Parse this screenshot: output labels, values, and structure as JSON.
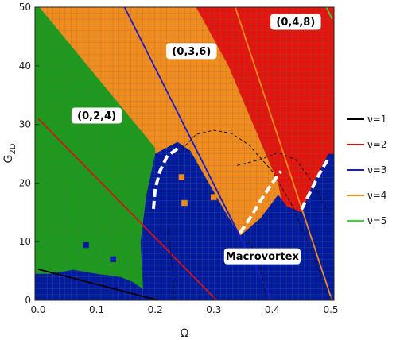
{
  "chart_data": {
    "type": "heatmap",
    "title": "",
    "xlabel": "Ω",
    "ylabel_main": "G",
    "ylabel_sub": "2D",
    "xlim": [
      0,
      0.5
    ],
    "ylim": [
      0,
      50
    ],
    "grid": true,
    "legend_position": "right",
    "x_ticks": [
      "0.0",
      "0.1",
      "0.2",
      "0.3",
      "0.4",
      "0.5"
    ],
    "x_tick_values": [
      0.0,
      0.1,
      0.2,
      0.3,
      0.4,
      0.5
    ],
    "y_ticks": [
      "0",
      "10",
      "20",
      "30",
      "40",
      "50"
    ],
    "y_tick_values": [
      0,
      10,
      20,
      30,
      40,
      50
    ],
    "colors": {
      "green": "#1c9a1c",
      "orange": "#f28c1d",
      "red": "#e3140c",
      "blue": "#001aa0",
      "grid_line": "#7a7a7a"
    },
    "regions": [
      {
        "label": "(0,2,4)",
        "color": "green",
        "x": 0.1,
        "y": 31.5
      },
      {
        "label": "(0,3,6)",
        "color": "orange",
        "x": 0.262,
        "y": 42.5
      },
      {
        "label": "(0,4,8)",
        "color": "red",
        "x": 0.44,
        "y": 47.5
      },
      {
        "label": "Macrovortex",
        "color": "blue",
        "x": 0.383,
        "y": 7.5
      }
    ],
    "boundaries": {
      "green_orange": [
        [
          0.002,
          50
        ],
        [
          0.2,
          26
        ]
      ],
      "orange_red": [
        [
          0.27,
          50
        ],
        [
          0.325,
          40
        ],
        [
          0.41,
          20
        ],
        [
          0.42,
          15
        ]
      ],
      "green_blue": [
        [
          0.2,
          25
        ],
        [
          0.185,
          18
        ],
        [
          0.175,
          10
        ],
        [
          0.18,
          0
        ]
      ],
      "macro_left": [
        [
          0.2,
          25
        ],
        [
          0.238,
          27
        ],
        [
          0.26,
          25.5
        ],
        [
          0.32,
          15
        ],
        [
          0.345,
          11
        ]
      ],
      "macro_right": [
        [
          0.45,
          15
        ],
        [
          0.47,
          20
        ],
        [
          0.496,
          25
        ]
      ]
    },
    "series": [
      {
        "name": "ν=1",
        "color": "#000000",
        "x": [
          0.0,
          0.205
        ],
        "y": [
          5.3,
          0
        ]
      },
      {
        "name": "ν=2",
        "color": "#d31414",
        "x": [
          0.0,
          0.305
        ],
        "y": [
          31,
          0
        ]
      },
      {
        "name": "ν=3",
        "color": "#1a1ad0",
        "x": [
          0.145,
          0.4
        ],
        "y": [
          50.5,
          0
        ]
      },
      {
        "name": "ν=4",
        "color": "#f28a1a",
        "x": [
          0.335,
          0.502
        ],
        "y": [
          50.5,
          0
        ]
      },
      {
        "name": "ν=5",
        "color": "#36d636",
        "x": [
          0.49,
          0.502
        ],
        "y": [
          50.5,
          48
        ]
      }
    ],
    "dashed_white_boundary": [
      [
        [
          0.197,
          15.6
        ],
        [
          0.2,
          19.0
        ],
        [
          0.208,
          22.0
        ],
        [
          0.22,
          24.5
        ],
        [
          0.23,
          25.3
        ],
        [
          0.24,
          26.0
        ]
      ],
      [
        [
          0.345,
          11.5
        ],
        [
          0.362,
          14.0
        ],
        [
          0.38,
          17.0
        ],
        [
          0.4,
          20.0
        ],
        [
          0.415,
          22.0
        ]
      ],
      [
        [
          0.45,
          15.5
        ],
        [
          0.465,
          18.5
        ],
        [
          0.48,
          21.5
        ],
        [
          0.496,
          24.2
        ]
      ]
    ],
    "dashed_black_curves": [
      [
        [
          0.238,
          25.0
        ],
        [
          0.27,
          28.3
        ],
        [
          0.3,
          29.0
        ],
        [
          0.33,
          28.5
        ],
        [
          0.36,
          26.5
        ],
        [
          0.4,
          22.0
        ],
        [
          0.435,
          16.0
        ],
        [
          0.46,
          10.0
        ],
        [
          0.48,
          5.0
        ],
        [
          0.495,
          0.5
        ]
      ],
      [
        [
          0.34,
          23.0
        ],
        [
          0.38,
          24.0
        ],
        [
          0.41,
          25.2
        ],
        [
          0.44,
          24.0
        ],
        [
          0.47,
          20.0
        ],
        [
          0.495,
          15.0
        ]
      ],
      [
        [
          0.222,
          12.0
        ],
        [
          0.23,
          5.0
        ],
        [
          0.232,
          0.0
        ]
      ],
      [
        [
          0.36,
          10.0
        ],
        [
          0.38,
          6.0
        ],
        [
          0.39,
          0.0
        ]
      ]
    ]
  }
}
